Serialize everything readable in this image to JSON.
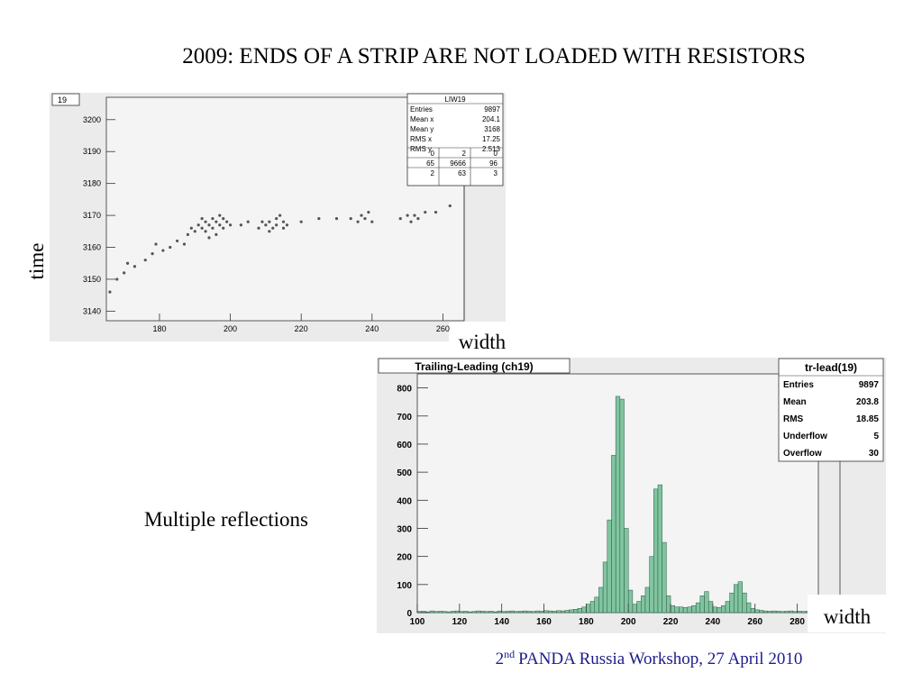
{
  "slide": {
    "title": "2009: ENDS OF A STRIP ARE NOT LOADED WITH RESISTORS",
    "y_label": "time",
    "x_label_top": "width",
    "note": "Multiple reflections",
    "x_label_bottom": "width",
    "footer": {
      "number": "2",
      "superscript": "nd",
      "text": "PANDA Russia Workshop, 27 April 2010"
    }
  },
  "chart_data": [
    {
      "type": "scatter",
      "tab": "19",
      "color": "#111111",
      "stats": {
        "title": "LIW19",
        "rows": [
          [
            "Entries",
            "9897"
          ],
          [
            "Mean x",
            "204.1"
          ],
          [
            "Mean y",
            "3168"
          ],
          [
            "RMS x",
            "17.25"
          ],
          [
            "RMS y",
            "2.513"
          ]
        ],
        "grid": [
          [
            "0",
            "2",
            "0"
          ],
          [
            "65",
            "9666",
            "96"
          ],
          [
            "2",
            "63",
            "3"
          ]
        ]
      },
      "x": [
        166,
        168,
        170,
        173,
        176,
        178,
        181,
        183,
        185,
        187,
        171,
        179,
        190,
        191,
        192,
        193,
        193,
        194,
        195,
        195,
        196,
        196,
        197,
        197,
        198,
        198,
        199,
        188,
        189,
        192,
        194,
        200,
        208,
        210,
        211,
        212,
        213,
        213,
        214,
        215,
        216,
        211,
        209,
        215,
        203,
        205,
        220,
        225,
        230,
        234,
        236,
        237,
        238,
        240,
        239,
        248,
        250,
        251,
        252,
        253,
        255,
        258,
        262
      ],
      "y": [
        3146,
        3150,
        3152,
        3154,
        3156,
        3158,
        3159,
        3160,
        3162,
        3161,
        3155,
        3161,
        3165,
        3167,
        3166,
        3168,
        3165,
        3167,
        3169,
        3166,
        3168,
        3164,
        3167,
        3170,
        3166,
        3169,
        3168,
        3164,
        3166,
        3169,
        3163,
        3167,
        3166,
        3167,
        3168,
        3166,
        3169,
        3167,
        3170,
        3168,
        3167,
        3165,
        3168,
        3166,
        3167,
        3168,
        3168,
        3169,
        3169,
        3169,
        3168,
        3170,
        3169,
        3168,
        3171,
        3169,
        3170,
        3168,
        3170,
        3169,
        3171,
        3171,
        3173
      ],
      "xlim": [
        165,
        266
      ],
      "ylim": [
        3137,
        3207
      ],
      "xticks": [
        180,
        200,
        220,
        240,
        260
      ],
      "yticks": [
        3140,
        3150,
        3160,
        3170,
        3180,
        3190,
        3200
      ]
    },
    {
      "type": "histogram",
      "title": "Trailing-Leading (ch19)",
      "color": "#80c4a0",
      "stats": {
        "title": "tr-lead(19)",
        "rows": [
          [
            "Entries",
            "9897"
          ],
          [
            "Mean",
            "203.8"
          ],
          [
            "RMS",
            "18.85"
          ],
          [
            "Underflow",
            "5"
          ],
          [
            "Overflow",
            "30"
          ]
        ]
      },
      "bins": [
        100,
        102,
        104,
        106,
        108,
        110,
        112,
        114,
        116,
        118,
        120,
        122,
        124,
        126,
        128,
        130,
        132,
        134,
        136,
        138,
        140,
        142,
        144,
        146,
        148,
        150,
        152,
        154,
        156,
        158,
        160,
        162,
        164,
        166,
        168,
        170,
        172,
        174,
        176,
        178,
        180,
        182,
        184,
        186,
        188,
        190,
        192,
        194,
        196,
        198,
        200,
        202,
        204,
        206,
        208,
        210,
        212,
        214,
        216,
        218,
        220,
        222,
        224,
        226,
        228,
        230,
        232,
        234,
        236,
        238,
        240,
        242,
        244,
        246,
        248,
        250,
        252,
        254,
        256,
        258,
        260,
        262,
        264,
        266,
        268,
        270,
        272,
        274,
        276,
        278,
        280,
        282,
        284,
        286,
        288,
        290
      ],
      "counts": [
        4,
        5,
        3,
        6,
        4,
        5,
        4,
        3,
        5,
        6,
        4,
        5,
        3,
        4,
        6,
        5,
        4,
        5,
        3,
        6,
        4,
        5,
        6,
        4,
        5,
        6,
        5,
        4,
        6,
        5,
        7,
        6,
        5,
        7,
        6,
        8,
        10,
        12,
        15,
        20,
        30,
        40,
        55,
        90,
        180,
        330,
        560,
        770,
        760,
        300,
        80,
        30,
        40,
        60,
        90,
        200,
        440,
        455,
        250,
        60,
        25,
        20,
        20,
        18,
        20,
        25,
        35,
        60,
        75,
        40,
        20,
        18,
        25,
        40,
        70,
        100,
        110,
        70,
        35,
        15,
        10,
        8,
        6,
        5,
        6,
        5,
        4,
        5,
        6,
        4,
        5,
        4,
        5,
        3,
        4
      ],
      "xlim": [
        100,
        290
      ],
      "ylim": [
        0,
        850
      ],
      "xticks": [
        100,
        120,
        140,
        160,
        180,
        200,
        220,
        240,
        260,
        280
      ],
      "yticks": [
        0,
        100,
        200,
        300,
        400,
        500,
        600,
        700,
        800
      ]
    }
  ]
}
